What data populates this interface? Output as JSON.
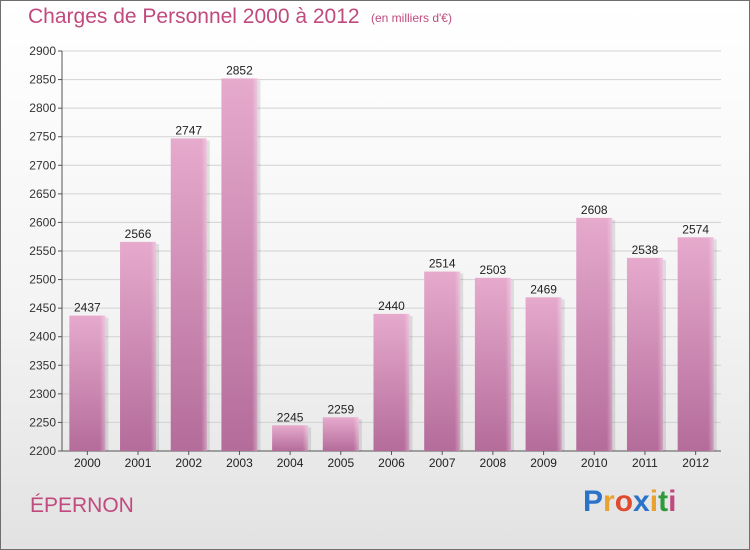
{
  "header": {
    "title": "Charges de Personnel 2000 à 2012",
    "subtitle": "(en milliers d'€)"
  },
  "footer": {
    "place": "ÉPERNON",
    "logo_letters": [
      "P",
      "r",
      "o",
      "x",
      "i",
      "t",
      "i"
    ],
    "logo_colors": [
      "#2a73c9",
      "#e9a22f",
      "#e04a2e",
      "#2a73c9",
      "#e9a22f",
      "#2f9a3a",
      "#c04a7e"
    ]
  },
  "colors": {
    "bar_top": "#e6aacd",
    "bar_bottom": "#b46c9a",
    "text_accent": "#c04a7e",
    "grid": "#d2d2d2"
  },
  "chart_data": {
    "type": "bar",
    "title": "Charges de Personnel 2000 à 2012",
    "subtitle": "(en milliers d'€)",
    "xlabel": "",
    "ylabel": "",
    "categories": [
      "2000",
      "2001",
      "2002",
      "2003",
      "2004",
      "2005",
      "2006",
      "2007",
      "2008",
      "2009",
      "2010",
      "2011",
      "2012"
    ],
    "values": [
      2437,
      2566,
      2747,
      2852,
      2245,
      2259,
      2440,
      2514,
      2503,
      2469,
      2608,
      2538,
      2574
    ],
    "ylim": [
      2200,
      2900
    ],
    "yticks": [
      2200,
      2250,
      2300,
      2350,
      2400,
      2450,
      2500,
      2550,
      2600,
      2650,
      2700,
      2750,
      2800,
      2850,
      2900
    ],
    "grid": true,
    "legend": "none"
  }
}
